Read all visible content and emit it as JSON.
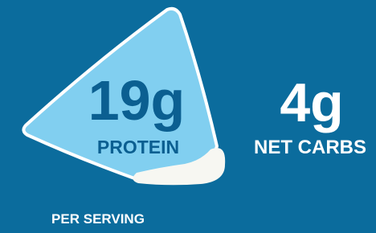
{
  "protein": {
    "amount": "19g",
    "label": "PROTEIN"
  },
  "carbs": {
    "amount": "4g",
    "label": "NET CARBS"
  },
  "footer": "PER SERVING"
}
